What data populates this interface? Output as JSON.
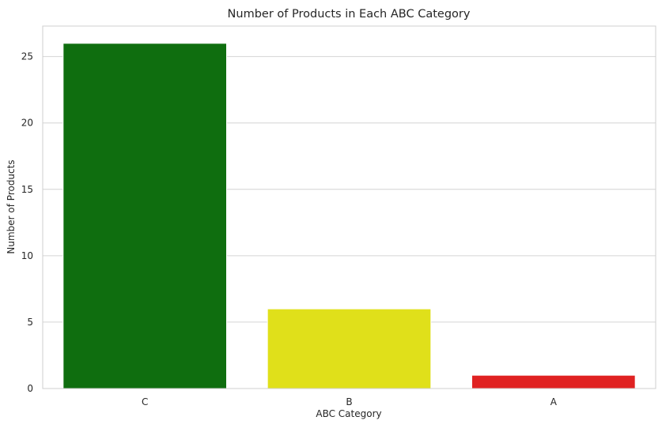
{
  "chart_data": {
    "type": "bar",
    "title": "Number of Products in Each ABC Category",
    "xlabel": "ABC Category",
    "ylabel": "Number of Products",
    "categories": [
      "C",
      "B",
      "A"
    ],
    "values": [
      26,
      6,
      1
    ],
    "colors": [
      "#0f6e0f",
      "#e0e01a",
      "#e02222"
    ],
    "ylim": [
      0,
      27.3
    ],
    "yticks": [
      0,
      5,
      10,
      15,
      20,
      25
    ],
    "grid": true,
    "legend": "none"
  }
}
